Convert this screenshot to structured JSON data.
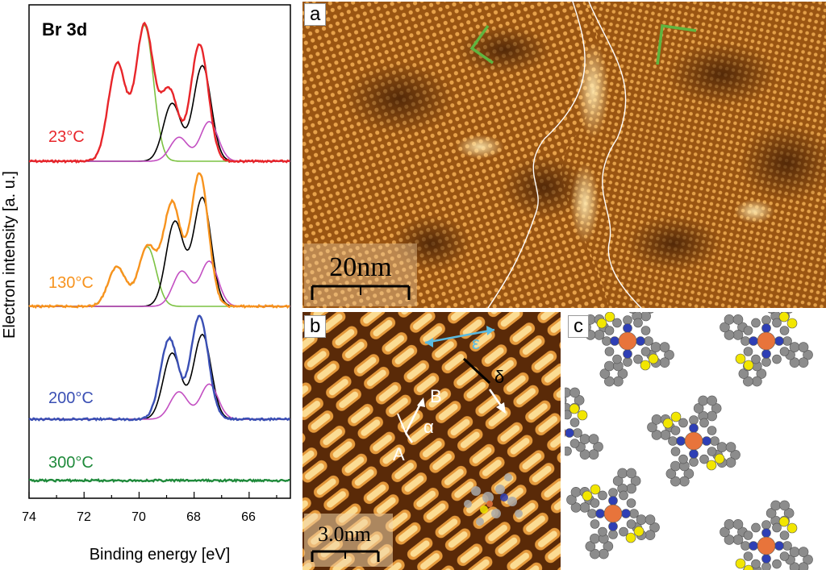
{
  "xps": {
    "title": "Br 3d",
    "ylabel": "Electron intensity [a. u.]",
    "xlabel": "Binding energy [eV]",
    "xticks": [
      "74",
      "72",
      "70",
      "68",
      "66"
    ],
    "temps": [
      {
        "label": "23°C",
        "color": "#e8262b"
      },
      {
        "label": "130°C",
        "color": "#f7931e"
      },
      {
        "label": "200°C",
        "color": "#3a4fb4"
      },
      {
        "label": "300°C",
        "color": "#1f8a3b"
      }
    ],
    "component_colors": {
      "high": "#7cc242",
      "low": "#000000",
      "mid": "#c34fc2"
    }
  },
  "panel_a": {
    "tag": "a",
    "scale": "20nm"
  },
  "panel_b": {
    "tag": "b",
    "scale": "3.0nm",
    "labels": {
      "A": "A",
      "B": "B",
      "alpha": "α",
      "epsilon": "ε",
      "delta": "δ"
    }
  },
  "panel_c": {
    "tag": "c",
    "colors": {
      "carbon": "#8c8c8c",
      "bromine": "#f2e600",
      "nitrogen": "#2e3fb5",
      "metal": "#e8743b"
    }
  },
  "chart_data": {
    "type": "line",
    "title": "Br 3d",
    "xlabel": "Binding energy [eV]",
    "ylabel": "Electron intensity [a. u.]",
    "xlim": [
      74,
      64.5
    ],
    "x_reversed": true,
    "series": [
      {
        "name": "23°C",
        "peaks": [
          {
            "center": 70.8,
            "height": 0.72
          },
          {
            "center": 69.8,
            "height": 1.0
          },
          {
            "center": 68.9,
            "height": 0.52
          },
          {
            "center": 67.8,
            "height": 0.86
          }
        ]
      },
      {
        "name": "130°C",
        "peaks": [
          {
            "center": 70.8,
            "height": 0.3
          },
          {
            "center": 69.7,
            "height": 0.45
          },
          {
            "center": 68.8,
            "height": 0.78
          },
          {
            "center": 67.8,
            "height": 1.0
          }
        ]
      },
      {
        "name": "200°C",
        "peaks": [
          {
            "center": 68.9,
            "height": 0.78
          },
          {
            "center": 67.8,
            "height": 1.0
          }
        ]
      },
      {
        "name": "300°C",
        "peaks": []
      }
    ]
  }
}
